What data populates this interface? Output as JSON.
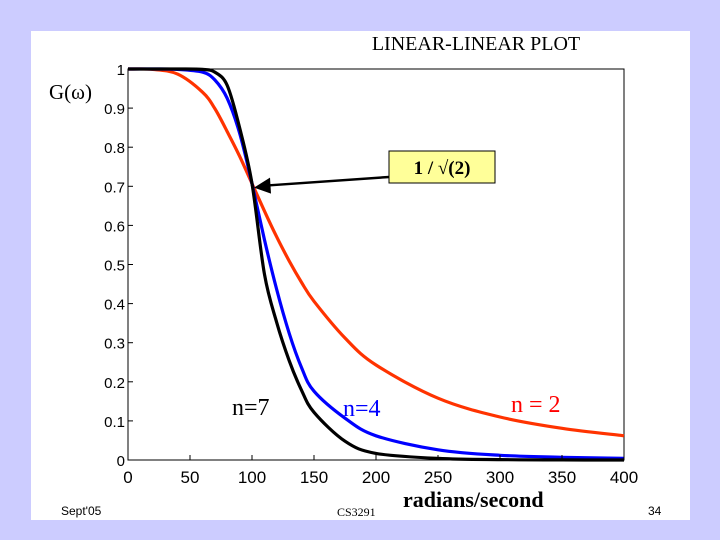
{
  "slide": {
    "footer_left": "Sept'05",
    "footer_center": "CS3291",
    "page_number": "34"
  },
  "chart_data": {
    "type": "line",
    "title": "LINEAR-LINEAR PLOT",
    "xlabel": "radians/second",
    "ylabel": "G(ω)",
    "xlim": [
      0,
      400
    ],
    "ylim": [
      0,
      1
    ],
    "x_ticks": [
      0,
      50,
      100,
      150,
      200,
      250,
      300,
      350,
      400
    ],
    "y_ticks": [
      0,
      0.1,
      0.2,
      0.3,
      0.4,
      0.5,
      0.6,
      0.7,
      0.8,
      0.9,
      1
    ],
    "x_tick_labels": [
      "0",
      "50",
      "100",
      "150",
      "200",
      "250",
      "300",
      "350",
      "400"
    ],
    "y_tick_labels": [
      "0",
      "0.1",
      "0.2",
      "0.3",
      "0.4",
      "0.5",
      "0.6",
      "0.7",
      "0.8",
      "0.9",
      "1"
    ],
    "grid": false,
    "cutoff_frequency": 100,
    "x": [
      0,
      20,
      40,
      60,
      70,
      80,
      90,
      100,
      110,
      120,
      130,
      140,
      150,
      175,
      200,
      250,
      300,
      350,
      400
    ],
    "series": [
      {
        "name": "n=7",
        "label": "n=7",
        "color": "#000000",
        "values": [
          1.0,
          1.0,
          1.0,
          0.999,
          0.992,
          0.958,
          0.85,
          0.707,
          0.476,
          0.351,
          0.254,
          0.178,
          0.122,
          0.048,
          0.017,
          0.004,
          0.001,
          0.0002,
          0.0001
        ]
      },
      {
        "name": "n=4",
        "label": "n=4",
        "color": "#0000ff",
        "values": [
          1.0,
          1.0,
          0.999,
          0.992,
          0.972,
          0.925,
          0.836,
          0.707,
          0.564,
          0.435,
          0.324,
          0.236,
          0.176,
          0.107,
          0.062,
          0.026,
          0.012,
          0.007,
          0.004
        ]
      },
      {
        "name": "n=2",
        "label": "n = 2",
        "color": "#ff3300",
        "values": [
          1.0,
          0.999,
          0.987,
          0.941,
          0.899,
          0.84,
          0.777,
          0.707,
          0.637,
          0.57,
          0.509,
          0.454,
          0.406,
          0.312,
          0.243,
          0.158,
          0.11,
          0.081,
          0.062
        ]
      }
    ],
    "annotation": {
      "text": "1 / √(2)",
      "x": 100,
      "y": 0.707
    }
  }
}
